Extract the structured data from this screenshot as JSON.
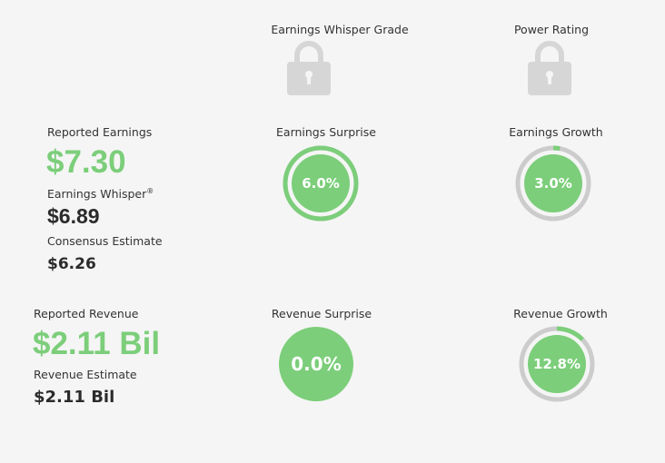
{
  "headers": {
    "whisper_grade": "Earnings Whisper Grade",
    "power_rating": "Power Rating"
  },
  "earnings": {
    "reported_label": "Reported Earnings",
    "reported_value": "$7.30",
    "whisper_label": "Earnings Whisper",
    "whisper_mark": "®",
    "whisper_value": "$6.89",
    "consensus_label": "Consensus Estimate",
    "consensus_value": "$6.26",
    "surprise_label": "Earnings Surprise",
    "surprise_value": "6.0%",
    "surprise_fraction": 1.0,
    "growth_label": "Earnings Growth",
    "growth_value": "3.0%",
    "growth_fraction": 0.03
  },
  "revenue": {
    "reported_label": "Reported Revenue",
    "reported_value": "$2.11 Bil",
    "estimate_label": "Revenue Estimate",
    "estimate_value": "$2.11 Bil",
    "surprise_label": "Revenue Surprise",
    "surprise_value": "0.0%",
    "surprise_fraction": 0.0,
    "growth_label": "Revenue Growth",
    "growth_value": "12.8%",
    "growth_fraction": 0.128
  },
  "colors": {
    "green": "#7cce7a",
    "track": "#cccccc",
    "lock": "#d6d6d6",
    "background": "#f5f5f5"
  },
  "icons": {
    "whisper_grade_lock": "lock-icon",
    "power_rating_lock": "lock-icon"
  }
}
